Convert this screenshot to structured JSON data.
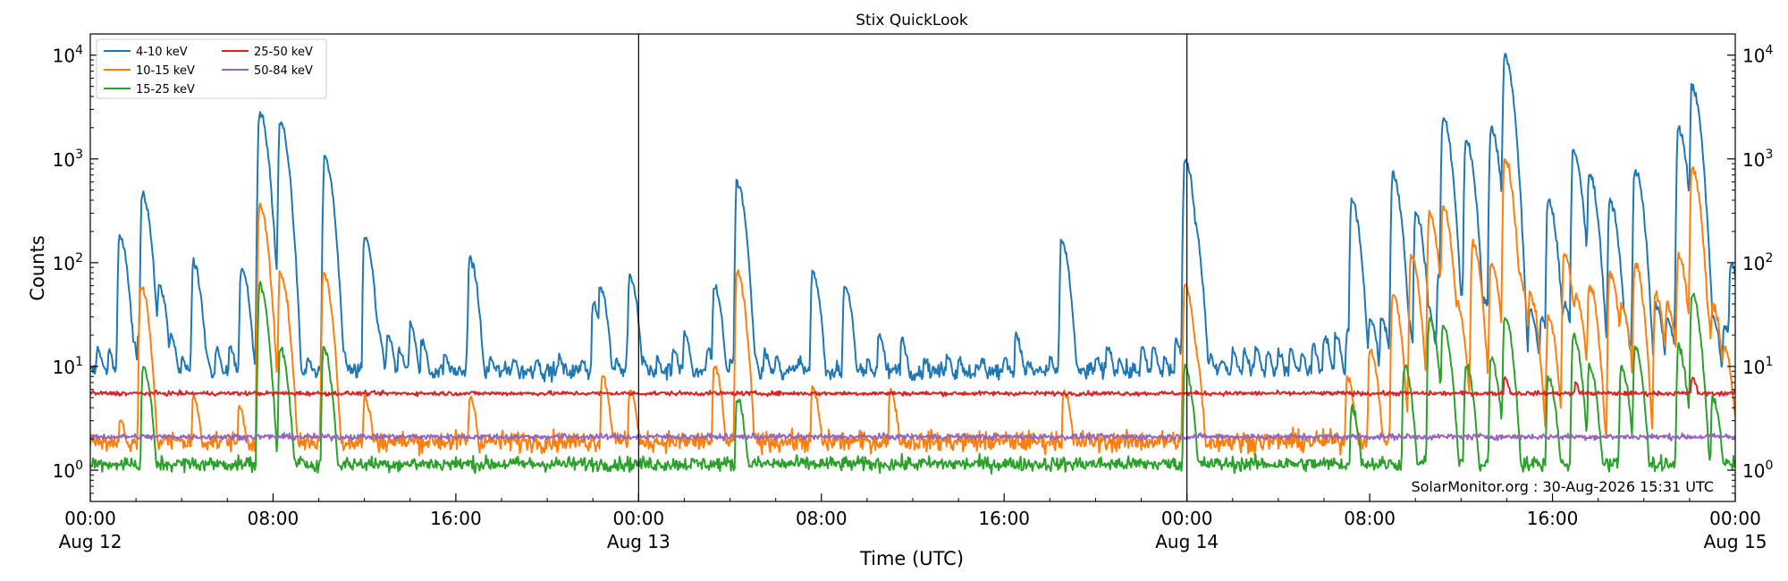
{
  "chart_data": {
    "type": "line",
    "title": "Stix QuickLook",
    "xlabel": "Time (UTC)",
    "ylabel": "Counts",
    "yscale": "log",
    "ylim": [
      0.5,
      16000
    ],
    "xlim_hours": [
      0,
      72
    ],
    "x_ticks": [
      {
        "hour": 0,
        "time": "00:00",
        "date": "Aug 12"
      },
      {
        "hour": 8,
        "time": "08:00",
        "date": ""
      },
      {
        "hour": 16,
        "time": "16:00",
        "date": ""
      },
      {
        "hour": 24,
        "time": "00:00",
        "date": "Aug 13"
      },
      {
        "hour": 32,
        "time": "08:00",
        "date": ""
      },
      {
        "hour": 40,
        "time": "16:00",
        "date": ""
      },
      {
        "hour": 48,
        "time": "00:00",
        "date": "Aug 14"
      },
      {
        "hour": 56,
        "time": "08:00",
        "date": ""
      },
      {
        "hour": 64,
        "time": "16:00",
        "date": ""
      },
      {
        "hour": 72,
        "time": "00:00",
        "date": "Aug 15"
      }
    ],
    "y_ticks": [
      {
        "value": 1,
        "base": "10",
        "exp": "0"
      },
      {
        "value": 10,
        "base": "10",
        "exp": "1"
      },
      {
        "value": 100,
        "base": "10",
        "exp": "2"
      },
      {
        "value": 1000,
        "base": "10",
        "exp": "3"
      },
      {
        "value": 10000,
        "base": "10",
        "exp": "4"
      }
    ],
    "day_boundaries_hours": [
      24,
      48
    ],
    "legend_position": "top-left",
    "annotation": "SolarMonitor.org : 30-Aug-2026 15:31 UTC",
    "series": [
      {
        "name": "4-10 keV",
        "color": "#1f77b4",
        "baseline": 9,
        "noise": 0.06,
        "peaks": [
          [
            0.3,
            15
          ],
          [
            0.8,
            14
          ],
          [
            1.2,
            15
          ],
          [
            1.5,
            30
          ],
          [
            1.6,
            16
          ],
          [
            1.8,
            18
          ],
          [
            2.1,
            20
          ],
          [
            2.5,
            18
          ],
          [
            2.6,
            60
          ],
          [
            2.8,
            22
          ],
          [
            3.0,
            60
          ],
          [
            3.1,
            15
          ],
          [
            3.5,
            20
          ],
          [
            4.0,
            12
          ],
          [
            4.5,
            14
          ],
          [
            5.0,
            15
          ],
          [
            5.5,
            15
          ],
          [
            6.1,
            15
          ],
          [
            7.0,
            12
          ],
          [
            8.0,
            15
          ],
          [
            8.5,
            20
          ],
          [
            9.5,
            12
          ],
          [
            11.0,
            15
          ],
          [
            12.0,
            15
          ],
          [
            12.5,
            25
          ],
          [
            13.0,
            20
          ],
          [
            13.5,
            15
          ],
          [
            14.0,
            25
          ],
          [
            14.5,
            18
          ],
          [
            15.5,
            13
          ],
          [
            16.5,
            18
          ],
          [
            17.5,
            12
          ],
          [
            18.5,
            12
          ],
          [
            19.5,
            12
          ],
          [
            20.5,
            12
          ],
          [
            21.5,
            12
          ],
          [
            22.0,
            40
          ],
          [
            23.0,
            12
          ],
          [
            23.5,
            14
          ],
          [
            24.2,
            12
          ],
          [
            24.8,
            12
          ],
          [
            25.5,
            15
          ],
          [
            26.0,
            20
          ],
          [
            27.0,
            15
          ],
          [
            28.0,
            12
          ],
          [
            28.5,
            15
          ],
          [
            29.0,
            14
          ],
          [
            29.5,
            14
          ],
          [
            30.0,
            12
          ],
          [
            31.0,
            12
          ],
          [
            32.0,
            12
          ],
          [
            33.0,
            12
          ],
          [
            34.0,
            12
          ],
          [
            35.5,
            18
          ],
          [
            36.5,
            12
          ],
          [
            37.5,
            13
          ],
          [
            38.0,
            12
          ],
          [
            39.0,
            12
          ],
          [
            40.0,
            12
          ],
          [
            41.0,
            11
          ],
          [
            42.0,
            12
          ],
          [
            43.0,
            12
          ],
          [
            44.0,
            12
          ],
          [
            44.5,
            16
          ],
          [
            45.0,
            12
          ],
          [
            46.0,
            15
          ],
          [
            46.5,
            15
          ],
          [
            47.0,
            12
          ],
          [
            47.5,
            18
          ],
          [
            48.0,
            12
          ],
          [
            48.5,
            13
          ],
          [
            49.0,
            13
          ],
          [
            49.5,
            12
          ],
          [
            50.0,
            14
          ],
          [
            50.5,
            14
          ],
          [
            51.0,
            15
          ],
          [
            51.5,
            14
          ],
          [
            52.0,
            14
          ],
          [
            52.5,
            15
          ],
          [
            53.0,
            13
          ],
          [
            53.5,
            16
          ],
          [
            54.0,
            20
          ],
          [
            54.5,
            20
          ],
          [
            55.0,
            22
          ],
          [
            55.5,
            25
          ],
          [
            56.0,
            30
          ],
          [
            56.5,
            30
          ],
          [
            57.0,
            30
          ],
          [
            57.5,
            40
          ],
          [
            58.0,
            45
          ],
          [
            58.5,
            40
          ],
          [
            59.0,
            80
          ],
          [
            59.5,
            55
          ],
          [
            60.0,
            50
          ],
          [
            60.5,
            40
          ],
          [
            61.0,
            45
          ],
          [
            61.5,
            35
          ],
          [
            62.0,
            30
          ],
          [
            62.5,
            30
          ],
          [
            63.0,
            35
          ],
          [
            63.5,
            30
          ],
          [
            64.0,
            40
          ],
          [
            64.5,
            40
          ],
          [
            65.0,
            45
          ],
          [
            65.5,
            40
          ],
          [
            66.0,
            45
          ],
          [
            66.5,
            35
          ],
          [
            67.0,
            40
          ],
          [
            67.5,
            35
          ],
          [
            68.0,
            35
          ],
          [
            68.5,
            40
          ],
          [
            69.0,
            30
          ],
          [
            69.5,
            35
          ],
          [
            70.0,
            40
          ],
          [
            70.5,
            55
          ],
          [
            71.0,
            30
          ],
          [
            71.5,
            25
          ],
          [
            1.27,
            180
          ],
          [
            2.27,
            450
          ],
          [
            4.5,
            100
          ],
          [
            6.6,
            90
          ],
          [
            7.4,
            2800
          ],
          [
            7.6,
            600
          ],
          [
            8.3,
            2300
          ],
          [
            10.25,
            1000
          ],
          [
            12.0,
            180
          ],
          [
            16.6,
            110
          ],
          [
            22.3,
            60
          ],
          [
            23.6,
            75
          ],
          [
            27.3,
            60
          ],
          [
            28.3,
            600
          ],
          [
            31.6,
            80
          ],
          [
            33.0,
            60
          ],
          [
            34.5,
            20
          ],
          [
            40.5,
            20
          ],
          [
            42.5,
            160
          ],
          [
            47.9,
            1000
          ],
          [
            48.2,
            300
          ],
          [
            55.2,
            400
          ],
          [
            57.0,
            700
          ],
          [
            58.0,
            300
          ],
          [
            59.2,
            2500
          ],
          [
            60.2,
            1500
          ],
          [
            61.3,
            2000
          ],
          [
            61.9,
            10000
          ],
          [
            63.8,
            400
          ],
          [
            64.9,
            1200
          ],
          [
            65.6,
            700
          ],
          [
            66.5,
            400
          ],
          [
            67.6,
            800
          ],
          [
            69.5,
            2000
          ],
          [
            70.1,
            5000
          ],
          [
            71.8,
            100
          ]
        ]
      },
      {
        "name": "10-15 keV",
        "color": "#ff7f0e",
        "baseline": 1.9,
        "noise": 0.07,
        "peaks": [
          [
            1.3,
            3
          ],
          [
            2.2,
            60
          ],
          [
            4.5,
            5
          ],
          [
            6.5,
            4
          ],
          [
            7.4,
            350
          ],
          [
            7.6,
            25
          ],
          [
            8.3,
            80
          ],
          [
            10.2,
            80
          ],
          [
            12.0,
            5
          ],
          [
            16.6,
            5
          ],
          [
            22.4,
            8
          ],
          [
            23.6,
            6
          ],
          [
            27.3,
            10
          ],
          [
            28.3,
            80
          ],
          [
            31.6,
            6
          ],
          [
            35.0,
            6
          ],
          [
            42.6,
            6
          ],
          [
            47.9,
            60
          ],
          [
            48.2,
            20
          ],
          [
            55.0,
            8
          ],
          [
            56.0,
            15
          ],
          [
            57.0,
            50
          ],
          [
            57.8,
            120
          ],
          [
            58.6,
            300
          ],
          [
            59.2,
            350
          ],
          [
            59.8,
            40
          ],
          [
            60.5,
            150
          ],
          [
            61.3,
            100
          ],
          [
            61.9,
            1000
          ],
          [
            62.5,
            80
          ],
          [
            63.0,
            50
          ],
          [
            63.8,
            30
          ],
          [
            64.5,
            120
          ],
          [
            65.0,
            50
          ],
          [
            65.6,
            60
          ],
          [
            66.5,
            80
          ],
          [
            67.0,
            40
          ],
          [
            67.6,
            100
          ],
          [
            68.5,
            50
          ],
          [
            69.0,
            40
          ],
          [
            69.5,
            120
          ],
          [
            70.1,
            800
          ],
          [
            70.5,
            60
          ],
          [
            71.0,
            40
          ],
          [
            71.5,
            15
          ]
        ]
      },
      {
        "name": "15-25 keV",
        "color": "#2ca02c",
        "baseline": 1.15,
        "noise": 0.05,
        "peaks": [
          [
            2.3,
            10
          ],
          [
            7.4,
            60
          ],
          [
            7.6,
            3
          ],
          [
            8.3,
            15
          ],
          [
            10.2,
            15
          ],
          [
            28.3,
            5
          ],
          [
            47.9,
            10
          ],
          [
            55.2,
            4
          ],
          [
            57.5,
            10
          ],
          [
            58.6,
            30
          ],
          [
            59.2,
            25
          ],
          [
            60.2,
            10
          ],
          [
            61.3,
            12
          ],
          [
            61.9,
            30
          ],
          [
            63.8,
            8
          ],
          [
            64.9,
            20
          ],
          [
            65.6,
            10
          ],
          [
            67.0,
            10
          ],
          [
            67.6,
            15
          ],
          [
            69.5,
            15
          ],
          [
            70.1,
            50
          ],
          [
            71.0,
            5
          ]
        ]
      },
      {
        "name": "25-50 keV",
        "color": "#d62728",
        "baseline": 5.5,
        "noise": 0.015,
        "peaks": [
          [
            61.9,
            8
          ],
          [
            70.1,
            8
          ],
          [
            65.0,
            7
          ]
        ]
      },
      {
        "name": "50-84 keV",
        "color": "#9467bd",
        "baseline": 2.1,
        "noise": 0.02,
        "peaks": []
      }
    ]
  }
}
